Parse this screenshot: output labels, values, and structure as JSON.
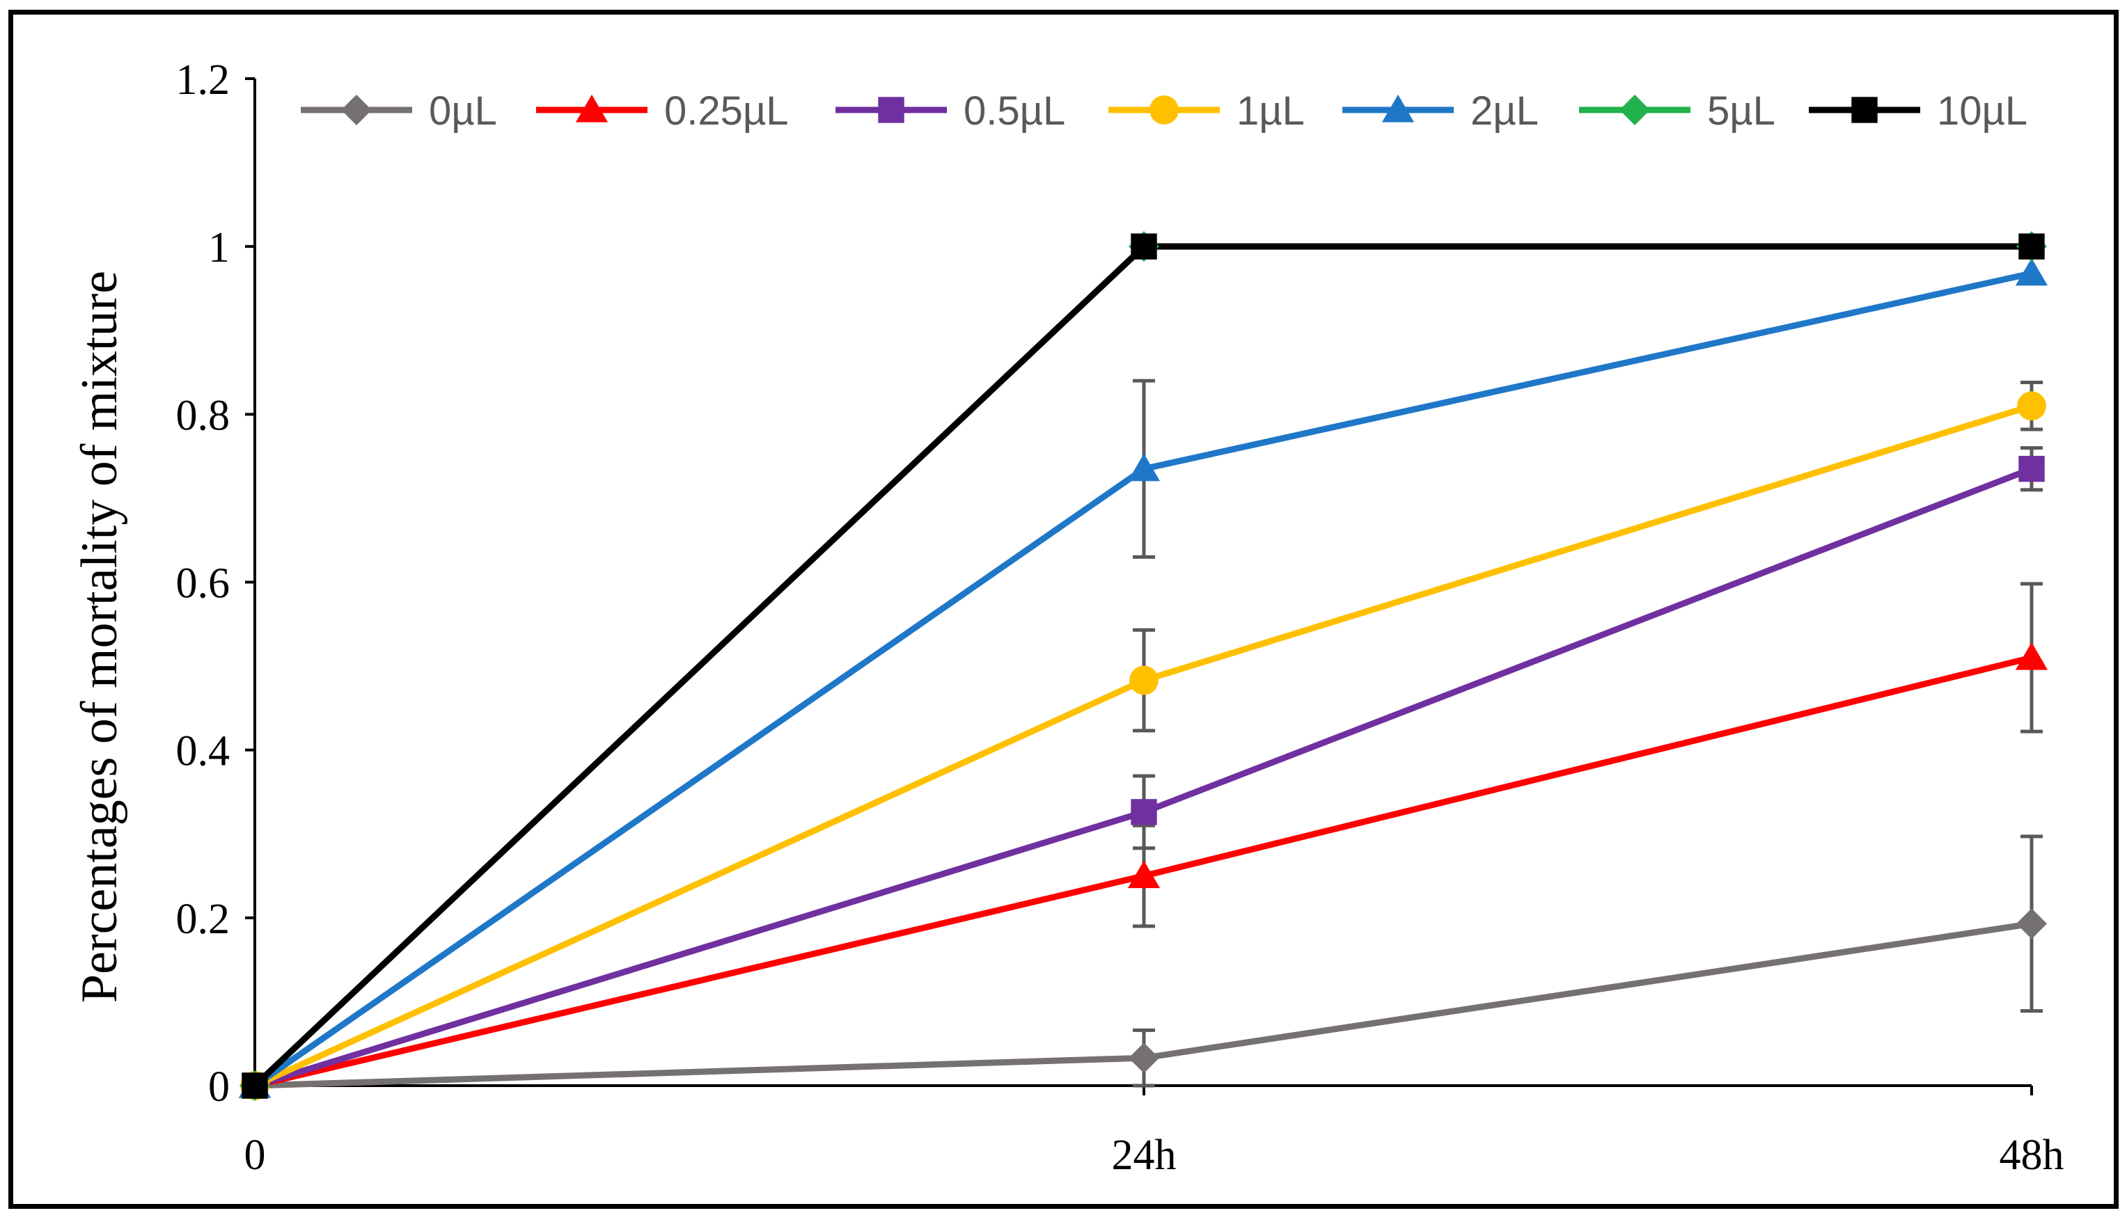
{
  "chart_data": {
    "type": "line",
    "title": "",
    "xlabel": "",
    "ylabel": "Percentages of mortality of mixture",
    "categories": [
      "0",
      "24h",
      "48h"
    ],
    "ylim": [
      0,
      1.2
    ],
    "yticks": [
      "0",
      "0.2",
      "0.4",
      "0.6",
      "0.8",
      "1",
      "1.2"
    ],
    "grid": false,
    "legend_position": "top",
    "series": [
      {
        "name": "0µL",
        "color": "#767171",
        "marker": "diamond",
        "values": [
          0,
          0.033,
          0.193
        ],
        "errors": [
          0,
          0.033,
          0.104
        ]
      },
      {
        "name": "0.25µL",
        "color": "#FF0000",
        "marker": "triangle",
        "values": [
          0,
          0.25,
          0.51
        ],
        "errors": [
          0,
          0.06,
          0.088
        ]
      },
      {
        "name": "0.5µL",
        "color": "#7030A0",
        "marker": "square",
        "values": [
          0,
          0.326,
          0.735
        ],
        "errors": [
          0,
          0.043,
          0.025
        ]
      },
      {
        "name": "1µL",
        "color": "#FFC000",
        "marker": "circle",
        "values": [
          0,
          0.483,
          0.81
        ],
        "errors": [
          0,
          0.06,
          0.028
        ]
      },
      {
        "name": "2µL",
        "color": "#1F77C8",
        "marker": "triangle",
        "values": [
          0,
          0.735,
          0.968
        ],
        "errors": [
          0,
          0.105,
          0
        ]
      },
      {
        "name": "5µL",
        "color": "#22B14C",
        "marker": "diamond",
        "values": [
          0,
          1,
          1
        ],
        "errors": [
          0,
          0,
          0
        ]
      },
      {
        "name": "10µL",
        "color": "#000000",
        "marker": "square",
        "values": [
          0,
          1,
          1
        ],
        "errors": [
          0,
          0,
          0
        ]
      }
    ]
  }
}
